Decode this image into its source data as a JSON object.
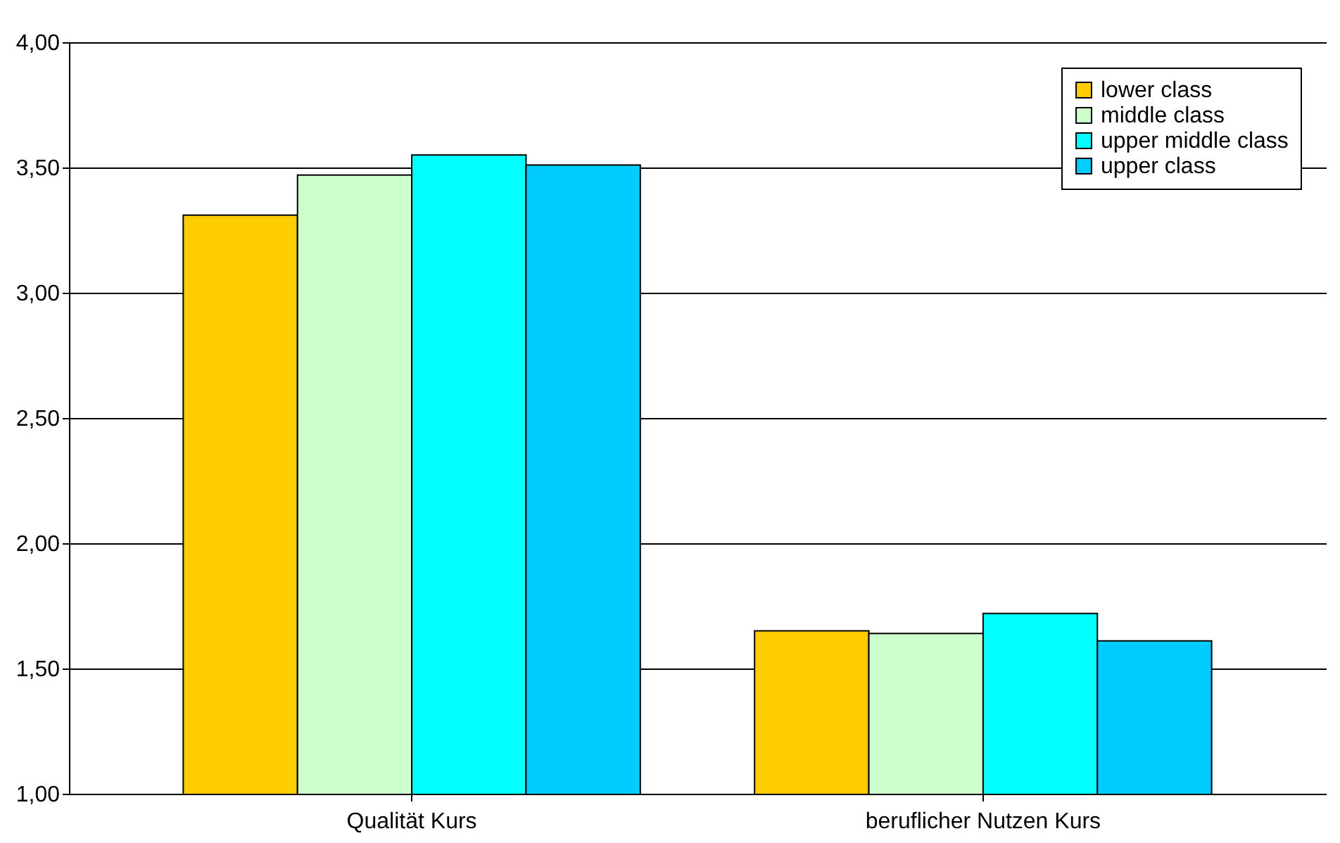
{
  "chart_data": {
    "type": "bar",
    "categories": [
      "Qualität Kurs",
      "beruflicher Nutzen Kurs"
    ],
    "series": [
      {
        "name": "lower class",
        "color": "#ffcc00",
        "values": [
          3.31,
          1.65
        ]
      },
      {
        "name": "middle class",
        "color": "#ccffcc",
        "values": [
          3.47,
          1.64
        ]
      },
      {
        "name": "upper middle class",
        "color": "#00ffff",
        "values": [
          3.55,
          1.72
        ]
      },
      {
        "name": "upper class",
        "color": "#00ccff",
        "values": [
          3.51,
          1.61
        ]
      }
    ],
    "ylim": [
      1,
      4
    ],
    "yticks": [
      {
        "value": 1,
        "label": "1,00"
      },
      {
        "value": 1.5,
        "label": "1,50"
      },
      {
        "value": 2,
        "label": "2,00"
      },
      {
        "value": 2.5,
        "label": "2,50"
      },
      {
        "value": 3,
        "label": "3,00"
      },
      {
        "value": 3.5,
        "label": "3,50"
      },
      {
        "value": 4,
        "label": "4,00"
      }
    ],
    "grid": "y",
    "legend": "top right"
  }
}
